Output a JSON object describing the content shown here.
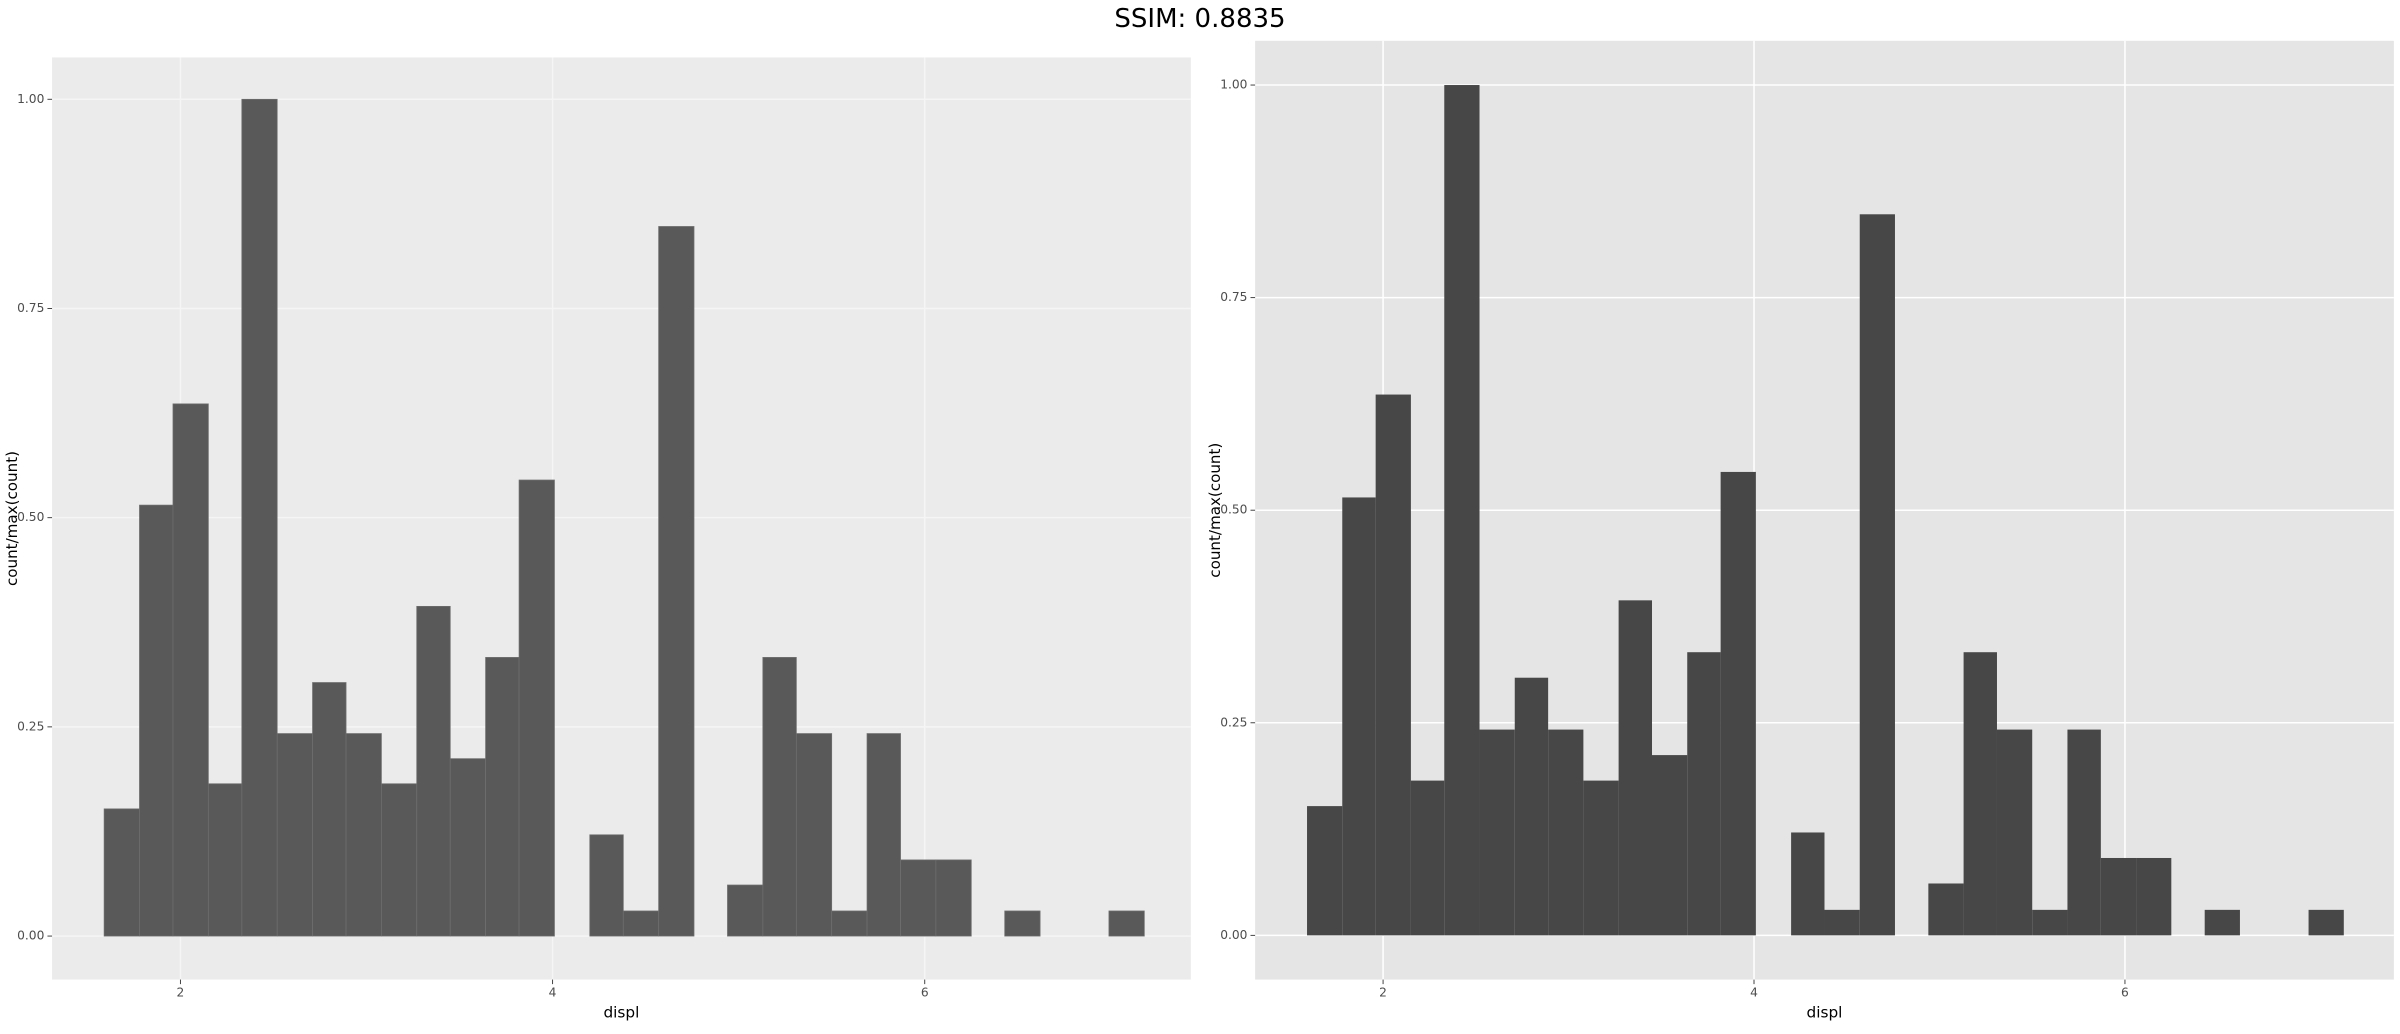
{
  "title": "SSIM: 0.8835",
  "chart_data": [
    {
      "type": "histogram",
      "xlabel": "displ",
      "ylabel": "count/max(count)",
      "bins": [
        1.59,
        1.78,
        1.96,
        2.15,
        2.33,
        2.52,
        2.71,
        2.89,
        3.08,
        3.27,
        3.45,
        3.64,
        3.82,
        4.01,
        4.2,
        4.38,
        4.57,
        4.76,
        4.94,
        5.13,
        5.31,
        5.5,
        5.69,
        5.87,
        6.06,
        6.25,
        6.43,
        6.62,
        6.8,
        6.99,
        7.18
      ],
      "values": [
        0.152,
        0.515,
        0.636,
        0.182,
        1.0,
        0.242,
        0.303,
        0.242,
        0.182,
        0.394,
        0.212,
        0.333,
        0.545,
        0,
        0.121,
        0.03,
        0.848,
        0,
        0.061,
        0.333,
        0.242,
        0.03,
        0.242,
        0.091,
        0.091,
        0,
        0.03,
        0,
        0,
        0.03
      ],
      "color": "#595959",
      "edge_color": "#6e6e6e",
      "background": "#ebebeb",
      "grid_color": "#f5f5f5",
      "xlim": [
        1.31,
        7.43
      ],
      "ylim": [
        -0.052,
        1.05
      ],
      "xticks": [
        2,
        4,
        6
      ],
      "yticks": [
        {
          "value": 0,
          "label": "0.00"
        },
        {
          "value": 0.25,
          "label": "0.25"
        },
        {
          "value": 0.5,
          "label": "0.50"
        },
        {
          "value": 0.75,
          "label": "0.75"
        },
        {
          "value": 1,
          "label": "1.00"
        }
      ],
      "grid": true
    },
    {
      "type": "histogram",
      "xlabel": "displ",
      "ylabel": "count/max(count)",
      "bins": [
        1.59,
        1.78,
        1.96,
        2.15,
        2.33,
        2.52,
        2.71,
        2.89,
        3.08,
        3.27,
        3.45,
        3.64,
        3.82,
        4.01,
        4.2,
        4.38,
        4.57,
        4.76,
        4.94,
        5.13,
        5.31,
        5.5,
        5.69,
        5.87,
        6.06,
        6.25,
        6.43,
        6.62,
        6.8,
        6.99,
        7.18
      ],
      "values": [
        0.152,
        0.515,
        0.636,
        0.182,
        1.0,
        0.242,
        0.303,
        0.242,
        0.182,
        0.394,
        0.212,
        0.333,
        0.545,
        0,
        0.121,
        0.03,
        0.848,
        0,
        0.061,
        0.333,
        0.242,
        0.03,
        0.242,
        0.091,
        0.091,
        0,
        0.03,
        0,
        0,
        0.03
      ],
      "color": "#474747",
      "background": "#e5e5e5",
      "grid_color": "#ffffff",
      "xlim": [
        1.31,
        7.45
      ],
      "ylim": [
        -0.052,
        1.052
      ],
      "xticks": [
        2,
        4,
        6
      ],
      "yticks": [
        {
          "value": 0,
          "label": "0.00"
        },
        {
          "value": 0.25,
          "label": "0.25"
        },
        {
          "value": 0.5,
          "label": "0.50"
        },
        {
          "value": 0.75,
          "label": "0.75"
        },
        {
          "value": 1,
          "label": "1.00"
        }
      ],
      "grid": true
    }
  ]
}
